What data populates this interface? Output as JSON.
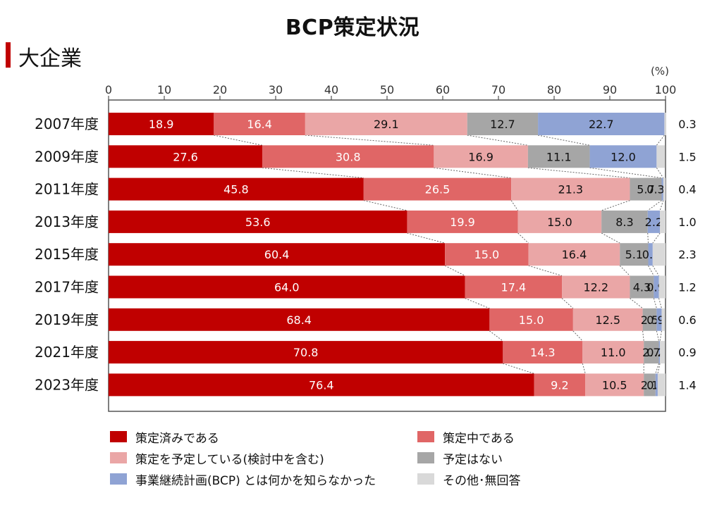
{
  "chart_data": {
    "type": "bar",
    "orientation": "horizontal",
    "stacked": true,
    "title": "BCP策定状況",
    "subtitle": "大企業",
    "unit_label": "(%)",
    "xlim": [
      0,
      100
    ],
    "xticks": [
      0,
      10,
      20,
      30,
      40,
      50,
      60,
      70,
      80,
      90,
      100
    ],
    "categories": [
      "2007年度",
      "2009年度",
      "2011年度",
      "2013年度",
      "2015年度",
      "2017年度",
      "2019年度",
      "2021年度",
      "2023年度"
    ],
    "series": [
      {
        "name": "策定済みである",
        "color": "#c00000",
        "label_color": "#ffffff",
        "values": [
          18.9,
          27.6,
          45.8,
          53.6,
          60.4,
          64.0,
          68.4,
          70.8,
          76.4
        ]
      },
      {
        "name": "策定中である",
        "color": "#e06666",
        "label_color": "#ffffff",
        "values": [
          16.4,
          30.8,
          26.5,
          19.9,
          15.0,
          17.4,
          15.0,
          14.3,
          9.2
        ]
      },
      {
        "name": "策定を予定している(検討中を含む)",
        "color": "#eaa6a6",
        "label_color": "#111111",
        "values": [
          29.1,
          16.9,
          21.3,
          15.0,
          16.4,
          12.2,
          12.5,
          11.0,
          10.5
        ]
      },
      {
        "name": "予定はない",
        "color": "#a6a6a6",
        "label_color": "#111111",
        "values": [
          12.7,
          11.1,
          5.7,
          8.3,
          5.1,
          4.3,
          2.5,
          2.7,
          2.1
        ]
      },
      {
        "name": "事業継続計画(BCP) とは何かを知らなかった",
        "color": "#8fa3d4",
        "label_color": "#111111",
        "values": [
          22.7,
          12.0,
          0.3,
          2.2,
          0.8,
          0.9,
          0.9,
          0.2,
          0.4
        ]
      },
      {
        "name": "その他･無回答",
        "color": "#d9d9d9",
        "label_color": "#111111",
        "values": [
          0.3,
          1.5,
          0.4,
          1.0,
          2.3,
          1.2,
          0.6,
          0.9,
          1.4
        ]
      }
    ],
    "value_labels": [
      [
        "18.9",
        "16.4",
        "29.1",
        "12.7",
        "22.7",
        "0.3"
      ],
      [
        "27.6",
        "30.8",
        "16.9",
        "11.1",
        "12.0",
        "1.5"
      ],
      [
        "45.8",
        "26.5",
        "21.3",
        "5.7",
        "0.3",
        "0.4"
      ],
      [
        "53.6",
        "19.9",
        "15.0",
        "8.3",
        "2.2",
        "1.0"
      ],
      [
        "60.4",
        "15.0",
        "16.4",
        "5.1",
        "0.8",
        "2.3"
      ],
      [
        "64.0",
        "17.4",
        "12.2",
        "4.3",
        "0.9",
        "1.2"
      ],
      [
        "68.4",
        "15.0",
        "12.5",
        "2.5",
        "0.9",
        "0.6"
      ],
      [
        "70.8",
        "14.3",
        "11.0",
        "2.7",
        "0.2",
        "0.9"
      ],
      [
        "76.4",
        "9.2",
        "10.5",
        "2.1",
        "0.4",
        "1.4"
      ]
    ],
    "connector_lines": "dotted",
    "legend_position": "bottom"
  }
}
